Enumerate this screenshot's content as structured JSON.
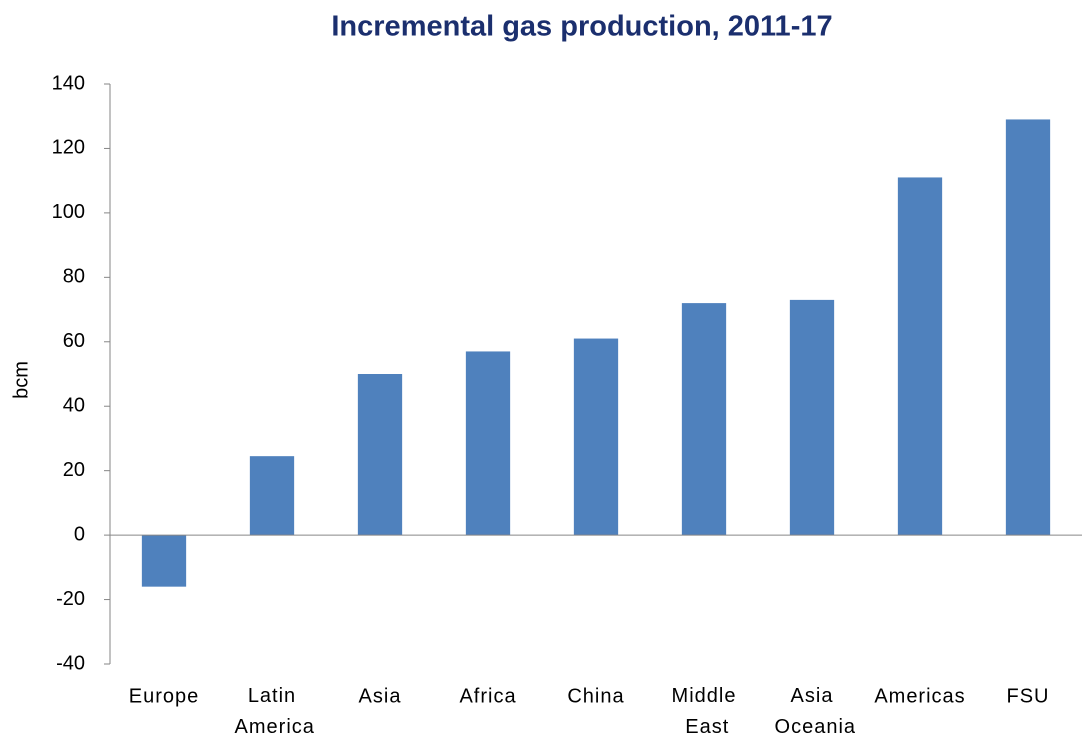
{
  "chart_data": {
    "type": "bar",
    "title": "Incremental gas production, 2011-17",
    "y_label": "bcm",
    "categories": [
      "Europe",
      "Latin America",
      "Asia",
      "Africa",
      "China",
      "Middle East",
      "Asia Oceania",
      "Americas",
      "FSU"
    ],
    "values": [
      -16,
      24.5,
      50,
      57,
      61,
      72,
      73,
      111,
      129
    ],
    "color": "#4f81bd",
    "ylim": [
      -40,
      140
    ],
    "yticks": [
      -40,
      -20,
      0,
      20,
      40,
      60,
      80,
      100,
      120,
      140
    ],
    "grid": false
  }
}
